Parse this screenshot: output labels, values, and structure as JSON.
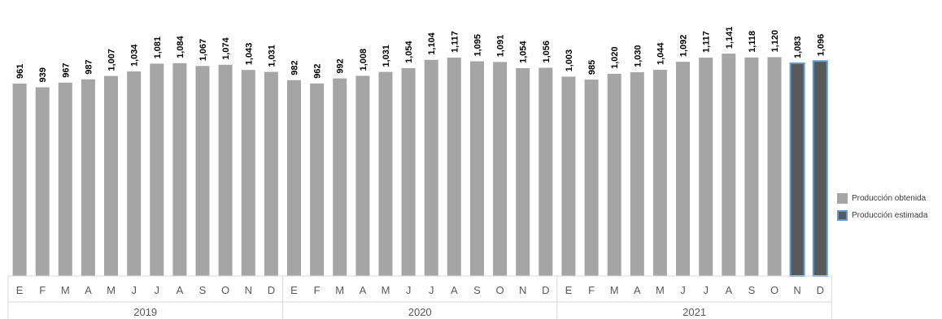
{
  "chart_data": {
    "type": "bar",
    "categories": [
      "E",
      "F",
      "M",
      "A",
      "M",
      "J",
      "J",
      "A",
      "S",
      "O",
      "N",
      "D",
      "E",
      "F",
      "M",
      "A",
      "M",
      "J",
      "J",
      "A",
      "S",
      "O",
      "N",
      "D",
      "E",
      "F",
      "M",
      "A",
      "M",
      "J",
      "J",
      "A",
      "S",
      "O",
      "N",
      "D"
    ],
    "years": [
      "2019",
      "2020",
      "2021"
    ],
    "values": [
      961,
      939,
      967,
      987,
      1007,
      1034,
      1081,
      1084,
      1067,
      1074,
      1043,
      1031,
      982,
      962,
      992,
      1008,
      1031,
      1054,
      1104,
      1117,
      1095,
      1091,
      1054,
      1056,
      1003,
      985,
      1020,
      1030,
      1044,
      1092,
      1117,
      1141,
      1118,
      1120,
      1083,
      1096
    ],
    "value_labels": [
      "961",
      "939",
      "967",
      "987",
      "1,007",
      "1,034",
      "1,081",
      "1,084",
      "1,067",
      "1,074",
      "1,043",
      "1,031",
      "982",
      "962",
      "992",
      "1,008",
      "1,031",
      "1,054",
      "1,104",
      "1,117",
      "1,095",
      "1,091",
      "1,054",
      "1,056",
      "1,003",
      "985",
      "1,020",
      "1,030",
      "1,044",
      "1,092",
      "1,117",
      "1,141",
      "1,118",
      "1,120",
      "1,083",
      "1,096"
    ],
    "estimated": [
      false,
      false,
      false,
      false,
      false,
      false,
      false,
      false,
      false,
      false,
      false,
      false,
      false,
      false,
      false,
      false,
      false,
      false,
      false,
      false,
      false,
      false,
      false,
      false,
      false,
      false,
      false,
      false,
      false,
      false,
      false,
      false,
      false,
      false,
      true,
      true
    ],
    "legend": [
      {
        "name": "Producción obtenida",
        "color": "#a6a5a5",
        "border": "#a6a5a5"
      },
      {
        "name": "Producción estimada",
        "color": "#595959",
        "border": "#5b9bd5"
      }
    ],
    "ylim": [
      0,
      1150
    ],
    "grid": false,
    "legend_position": "right"
  }
}
